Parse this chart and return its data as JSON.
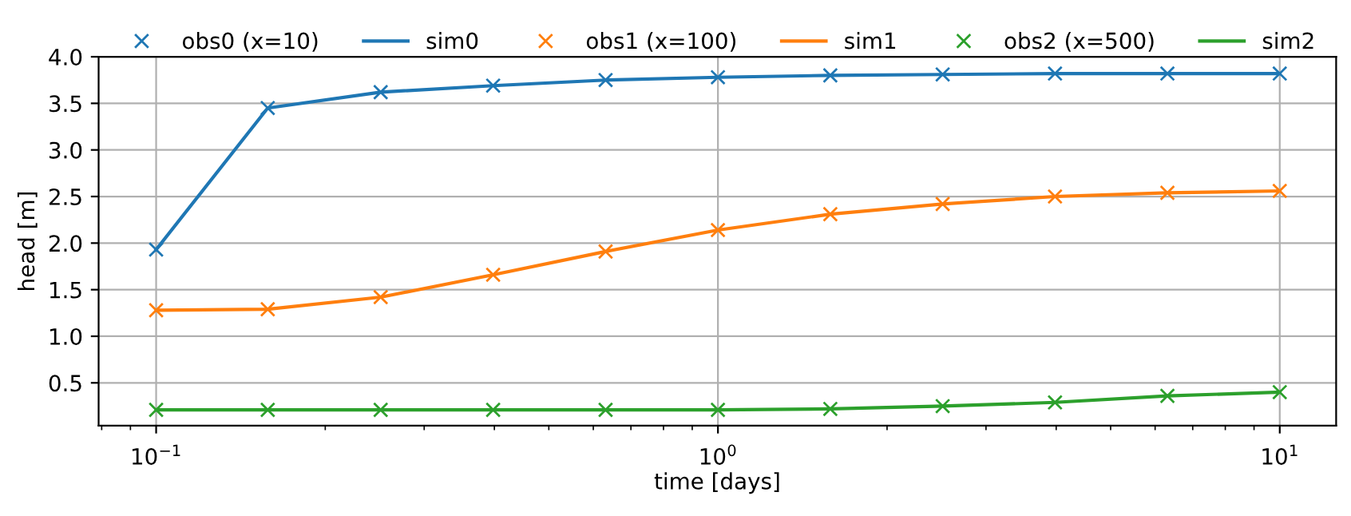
{
  "chart_data": {
    "type": "line",
    "xlabel": "time [days]",
    "ylabel": "head [m]",
    "log": "x",
    "x": [
      0.1,
      0.158,
      0.251,
      0.398,
      0.631,
      1,
      1.585,
      2.512,
      3.981,
      6.31,
      10
    ],
    "xlim": [
      0.079,
      12.6
    ],
    "xticks": [
      {
        "value": 0.1,
        "label": "10$^{−1}$"
      },
      {
        "value": 1,
        "label": "10$^{0}$"
      },
      {
        "value": 10,
        "label": "10$^{1}$"
      }
    ],
    "ylim": [
      0.04,
      4.0
    ],
    "yticks": [
      0.5,
      {
        "value": 1,
        "label": "1.0"
      },
      1.5,
      {
        "value": 2,
        "label": "2.0"
      },
      2.5,
      {
        "value": 3,
        "label": "3.0"
      },
      3.5,
      {
        "value": 4,
        "label": "4.0"
      }
    ],
    "grid": true,
    "legend": "top",
    "series": [
      {
        "name": "obs0 (x=10)",
        "type": "scatter",
        "marker": "cross",
        "color": "#1f77b4",
        "values": [
          1.93,
          3.45,
          3.62,
          3.69,
          3.75,
          3.78,
          3.8,
          3.81,
          3.82,
          3.82,
          3.82
        ]
      },
      {
        "name": "sim0",
        "color": "#1f77b4",
        "values": [
          1.93,
          3.45,
          3.62,
          3.69,
          3.75,
          3.78,
          3.8,
          3.81,
          3.82,
          3.82,
          3.82
        ]
      },
      {
        "name": "obs1 (x=100)",
        "type": "scatter",
        "marker": "cross",
        "color": "#ff7f0e",
        "values": [
          1.28,
          1.29,
          1.42,
          1.66,
          1.91,
          2.14,
          2.31,
          2.42,
          2.5,
          2.54,
          2.56
        ]
      },
      {
        "name": "sim1",
        "color": "#ff7f0e",
        "values": [
          1.28,
          1.29,
          1.42,
          1.66,
          1.91,
          2.14,
          2.31,
          2.42,
          2.5,
          2.54,
          2.56
        ]
      },
      {
        "name": "obs2 (x=500)",
        "type": "scatter",
        "marker": "cross",
        "color": "#2ca02c",
        "values": [
          0.21,
          0.21,
          0.21,
          0.21,
          0.21,
          0.21,
          0.22,
          0.25,
          0.29,
          0.36,
          0.4
        ]
      },
      {
        "name": "sim2",
        "color": "#2ca02c",
        "values": [
          0.21,
          0.21,
          0.21,
          0.21,
          0.21,
          0.21,
          0.22,
          0.25,
          0.29,
          0.36,
          0.4
        ]
      }
    ]
  }
}
